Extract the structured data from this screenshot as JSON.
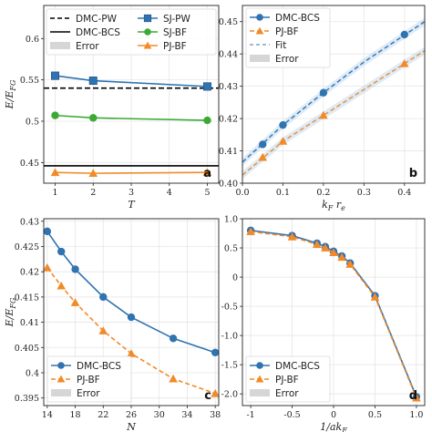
{
  "chart_data": [
    {
      "type": "line",
      "panel_label": "a",
      "xlabel": "T",
      "ylabel": "E/E_FG",
      "xlim": [
        0.7,
        5.3
      ],
      "ylim": [
        0.425,
        0.64
      ],
      "xticks": [
        "1",
        "2",
        "3",
        "4",
        "5"
      ],
      "yticks": [
        "0.45",
        "0.5",
        "0.55",
        "0.6"
      ],
      "legend": {
        "placement": "top",
        "columns": 2,
        "entries": [
          "DMC-PW",
          "SJ-PW",
          "DMC-BCS",
          "SJ-BF",
          "Error",
          "PJ-BF"
        ]
      },
      "reference_lines": [
        {
          "name": "DMC-PW",
          "y": 0.54,
          "style": "dashed",
          "color": "#000000"
        },
        {
          "name": "DMC-BCS",
          "y": 0.446,
          "style": "solid",
          "color": "#000000"
        }
      ],
      "series": [
        {
          "name": "SJ-PW",
          "x": [
            1,
            2,
            5
          ],
          "y": [
            0.555,
            0.549,
            0.542
          ],
          "color": "#2f73b1",
          "marker": "square"
        },
        {
          "name": "SJ-BF",
          "x": [
            1,
            2,
            5
          ],
          "y": [
            0.507,
            0.504,
            0.501
          ],
          "color": "#3aaa35",
          "marker": "circle"
        },
        {
          "name": "PJ-BF",
          "x": [
            1,
            2,
            5
          ],
          "y": [
            0.438,
            0.437,
            0.438
          ],
          "color": "#f28a28",
          "marker": "triangle"
        }
      ]
    },
    {
      "type": "line",
      "panel_label": "b",
      "xlabel": "k_F r_e",
      "ylabel": "",
      "xlim": [
        0.0,
        0.45
      ],
      "ylim": [
        0.4,
        0.455
      ],
      "xticks": [
        "0.0",
        "0.1",
        "0.2",
        "0.3",
        "0.4"
      ],
      "yticks": [
        "0.40",
        "0.41",
        "0.42",
        "0.43",
        "0.44",
        "0.45"
      ],
      "legend": {
        "placement": "top-left",
        "columns": 1,
        "entries": [
          "DMC-BCS",
          "PJ-BF",
          "Fit",
          "Error"
        ]
      },
      "series": [
        {
          "name": "DMC-BCS",
          "x": [
            0.05,
            0.1,
            0.2,
            0.4
          ],
          "y": [
            0.412,
            0.418,
            0.428,
            0.446
          ],
          "color": "#2f73b1",
          "marker": "circle"
        },
        {
          "name": "PJ-BF",
          "x": [
            0.05,
            0.1,
            0.2,
            0.4
          ],
          "y": [
            0.408,
            0.413,
            0.421,
            0.437
          ],
          "color": "#f28a28",
          "marker": "triangle"
        }
      ],
      "fits": [
        {
          "series": "DMC-BCS",
          "x": [
            0.0,
            0.1,
            0.2,
            0.3,
            0.45
          ],
          "y": [
            0.4065,
            0.418,
            0.428,
            0.4375,
            0.45
          ],
          "color": "#2f73b1"
        },
        {
          "series": "PJ-BF",
          "x": [
            0.0,
            0.1,
            0.2,
            0.3,
            0.45
          ],
          "y": [
            0.4025,
            0.413,
            0.421,
            0.429,
            0.441
          ],
          "color": "#f28a28"
        }
      ]
    },
    {
      "type": "line",
      "panel_label": "c",
      "xlabel": "N",
      "ylabel": "E/E_FG",
      "xlim": [
        13.5,
        38.5
      ],
      "ylim": [
        0.3935,
        0.4305
      ],
      "xticks": [
        "14",
        "18",
        "22",
        "26",
        "30",
        "34",
        "38"
      ],
      "yticks": [
        "0.395",
        "0.4",
        "0.405",
        "0.41",
        "0.415",
        "0.42",
        "0.425",
        "0.43"
      ],
      "legend": {
        "placement": "bottom-left",
        "columns": 1,
        "entries": [
          "DMC-BCS",
          "PJ-BF",
          "Error"
        ]
      },
      "series": [
        {
          "name": "DMC-BCS",
          "x": [
            14,
            16,
            18,
            22,
            26,
            32,
            38
          ],
          "y": [
            0.428,
            0.424,
            0.4205,
            0.415,
            0.411,
            0.4068,
            0.404
          ],
          "color": "#2f73b1",
          "marker": "circle"
        },
        {
          "name": "PJ-BF",
          "x": [
            14,
            16,
            18,
            22,
            26,
            32,
            38
          ],
          "y": [
            0.4208,
            0.4172,
            0.4139,
            0.4083,
            0.4038,
            0.3988,
            0.3959
          ],
          "color": "#f28a28",
          "marker": "triangle"
        }
      ]
    },
    {
      "type": "line",
      "panel_label": "d",
      "xlabel": "1/ak_F",
      "ylabel": "",
      "xlim": [
        -1.1,
        1.1
      ],
      "ylim": [
        -2.2,
        1.0
      ],
      "xticks": [
        "-1",
        "-0.5",
        "0",
        "0.5",
        "1.0"
      ],
      "yticks": [
        "-2.0",
        "-1.5",
        "-1.0",
        "-0.5",
        "0",
        "0.5",
        "1.0"
      ],
      "legend": {
        "placement": "bottom-left",
        "columns": 1,
        "entries": [
          "DMC-BCS",
          "PJ-BF",
          "Error"
        ]
      },
      "series": [
        {
          "name": "DMC-BCS",
          "x": [
            -1,
            -0.5,
            -0.2,
            -0.1,
            0,
            0.1,
            0.2,
            0.5,
            1.0
          ],
          "y": [
            0.8,
            0.71,
            0.58,
            0.52,
            0.44,
            0.36,
            0.24,
            -0.32,
            -2.05
          ],
          "color": "#2f73b1",
          "marker": "circle"
        },
        {
          "name": "PJ-BF",
          "x": [
            -1,
            -0.5,
            -0.2,
            -0.1,
            0,
            0.1,
            0.2,
            0.5,
            1.0
          ],
          "y": [
            0.78,
            0.69,
            0.56,
            0.5,
            0.42,
            0.34,
            0.22,
            -0.34,
            -2.07
          ],
          "color": "#f28a28",
          "marker": "triangle"
        }
      ]
    }
  ]
}
